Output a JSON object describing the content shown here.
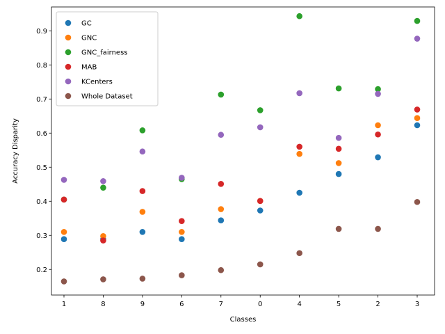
{
  "chart_data": {
    "type": "scatter",
    "xlabel": "Classes",
    "ylabel": "Accuracy Disparity",
    "categories": [
      "1",
      "8",
      "9",
      "6",
      "7",
      "0",
      "4",
      "5",
      "2",
      "3"
    ],
    "ylim": [
      0.125,
      0.97
    ],
    "yticks": [
      0.2,
      0.3,
      0.4,
      0.5,
      0.6,
      0.7,
      0.8,
      0.9
    ],
    "ytick_labels": [
      "0.2",
      "0.3",
      "0.4",
      "0.5",
      "0.6",
      "0.7",
      "0.8",
      "0.9"
    ],
    "grid": false,
    "legend_position": "top-left",
    "series": [
      {
        "name": "GC",
        "color": "#1f77b4",
        "values": [
          0.289,
          0.289,
          0.31,
          0.289,
          0.344,
          0.373,
          0.425,
          0.48,
          0.529,
          0.623
        ]
      },
      {
        "name": "GNC",
        "color": "#ff7f0e",
        "values": [
          0.31,
          0.298,
          0.369,
          0.31,
          0.377,
          0.401,
          0.539,
          0.512,
          0.623,
          0.644
        ]
      },
      {
        "name": "GNC_fairness",
        "color": "#2ca02c",
        "values": [
          0.405,
          0.44,
          0.608,
          0.465,
          0.713,
          0.667,
          0.943,
          0.731,
          0.729,
          0.929
        ]
      },
      {
        "name": "MAB",
        "color": "#d62728",
        "values": [
          0.405,
          0.285,
          0.43,
          0.342,
          0.451,
          0.401,
          0.56,
          0.554,
          0.596,
          0.669
        ]
      },
      {
        "name": "KCenters",
        "color": "#9467bd",
        "values": [
          0.463,
          0.459,
          0.546,
          0.469,
          0.595,
          0.617,
          0.717,
          0.586,
          0.715,
          0.877
        ]
      },
      {
        "name": "Whole Dataset",
        "color": "#8c564b",
        "values": [
          0.165,
          0.171,
          0.173,
          0.183,
          0.198,
          0.215,
          0.248,
          0.319,
          0.319,
          0.398
        ]
      }
    ]
  }
}
